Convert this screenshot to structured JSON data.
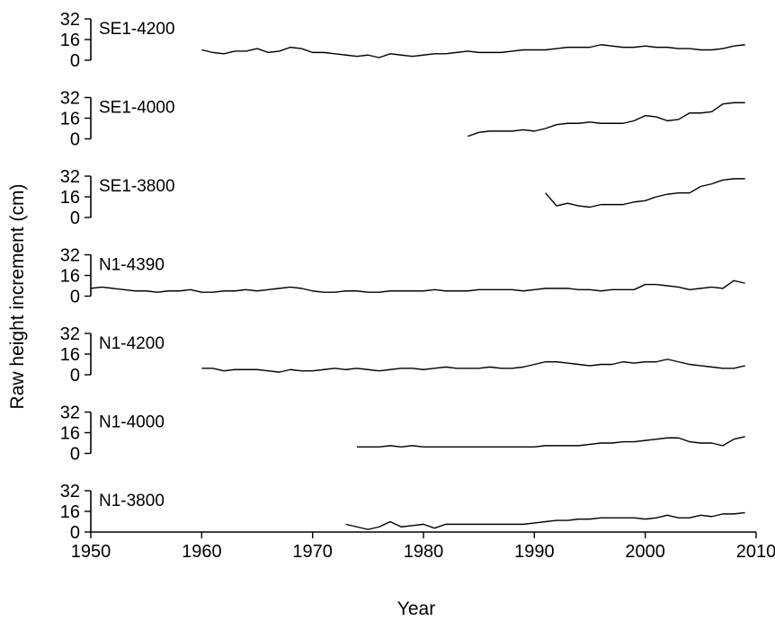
{
  "chart_data": {
    "type": "line",
    "xlabel": "Year",
    "ylabel": "Raw height increment (cm)",
    "xlim": [
      1950,
      2010
    ],
    "xticks": [
      "1950",
      "1960",
      "1970",
      "1980",
      "1990",
      "2000",
      "2010"
    ],
    "ylim": [
      0,
      32
    ],
    "yticks": [
      "0",
      "16",
      "32"
    ],
    "grid": false,
    "series": [
      {
        "name": "SE1-4200",
        "x": [
          1960,
          1961,
          1962,
          1963,
          1964,
          1965,
          1966,
          1967,
          1968,
          1969,
          1970,
          1971,
          1972,
          1973,
          1974,
          1975,
          1976,
          1977,
          1978,
          1979,
          1980,
          1981,
          1982,
          1983,
          1984,
          1985,
          1986,
          1987,
          1988,
          1989,
          1990,
          1991,
          1992,
          1993,
          1994,
          1995,
          1996,
          1997,
          1998,
          1999,
          2000,
          2001,
          2002,
          2003,
          2004,
          2005,
          2006,
          2007,
          2008,
          2009
        ],
        "y": [
          8,
          6,
          5,
          7,
          7,
          9,
          6,
          7,
          10,
          9,
          6,
          6,
          5,
          4,
          3,
          4,
          2,
          5,
          4,
          3,
          4,
          5,
          5,
          6,
          7,
          6,
          6,
          6,
          7,
          8,
          8,
          8,
          9,
          10,
          10,
          10,
          12,
          11,
          10,
          10,
          11,
          10,
          10,
          9,
          9,
          8,
          8,
          9,
          11,
          12
        ]
      },
      {
        "name": "SE1-4000",
        "x": [
          1984,
          1985,
          1986,
          1987,
          1988,
          1989,
          1990,
          1991,
          1992,
          1993,
          1994,
          1995,
          1996,
          1997,
          1998,
          1999,
          2000,
          2001,
          2002,
          2003,
          2004,
          2005,
          2006,
          2007,
          2008,
          2009
        ],
        "y": [
          2,
          5,
          6,
          6,
          6,
          7,
          6,
          8,
          11,
          12,
          12,
          13,
          12,
          12,
          12,
          14,
          18,
          17,
          14,
          15,
          20,
          20,
          21,
          27,
          28,
          28
        ]
      },
      {
        "name": "SE1-3800",
        "x": [
          1991,
          1992,
          1993,
          1994,
          1995,
          1996,
          1997,
          1998,
          1999,
          2000,
          2001,
          2002,
          2003,
          2004,
          2005,
          2006,
          2007,
          2008,
          2009
        ],
        "y": [
          19,
          9,
          11,
          9,
          8,
          10,
          10,
          10,
          12,
          13,
          16,
          18,
          19,
          19,
          24,
          26,
          29,
          30,
          30
        ]
      },
      {
        "name": "N1-4390",
        "x": [
          1950,
          1951,
          1952,
          1953,
          1954,
          1955,
          1956,
          1957,
          1958,
          1959,
          1960,
          1961,
          1962,
          1963,
          1964,
          1965,
          1966,
          1967,
          1968,
          1969,
          1970,
          1971,
          1972,
          1973,
          1974,
          1975,
          1976,
          1977,
          1978,
          1979,
          1980,
          1981,
          1982,
          1983,
          1984,
          1985,
          1986,
          1987,
          1988,
          1989,
          1990,
          1991,
          1992,
          1993,
          1994,
          1995,
          1996,
          1997,
          1998,
          1999,
          2000,
          2001,
          2002,
          2003,
          2004,
          2005,
          2006,
          2007,
          2008,
          2009
        ],
        "y": [
          6,
          7,
          6,
          5,
          4,
          4,
          3,
          4,
          4,
          5,
          3,
          3,
          4,
          4,
          5,
          4,
          5,
          6,
          7,
          6,
          4,
          3,
          3,
          4,
          4,
          3,
          3,
          4,
          4,
          4,
          4,
          5,
          4,
          4,
          4,
          5,
          5,
          5,
          5,
          4,
          5,
          6,
          6,
          6,
          5,
          5,
          4,
          5,
          5,
          5,
          9,
          9,
          8,
          7,
          5,
          6,
          7,
          6,
          12,
          10
        ]
      },
      {
        "name": "N1-4200",
        "x": [
          1960,
          1961,
          1962,
          1963,
          1964,
          1965,
          1966,
          1967,
          1968,
          1969,
          1970,
          1971,
          1972,
          1973,
          1974,
          1975,
          1976,
          1977,
          1978,
          1979,
          1980,
          1981,
          1982,
          1983,
          1984,
          1985,
          1986,
          1987,
          1988,
          1989,
          1990,
          1991,
          1992,
          1993,
          1994,
          1995,
          1996,
          1997,
          1998,
          1999,
          2000,
          2001,
          2002,
          2003,
          2004,
          2005,
          2006,
          2007,
          2008,
          2009
        ],
        "y": [
          5,
          5,
          3,
          4,
          4,
          4,
          3,
          2,
          4,
          3,
          3,
          4,
          5,
          4,
          5,
          4,
          3,
          4,
          5,
          5,
          4,
          5,
          6,
          5,
          5,
          5,
          6,
          5,
          5,
          6,
          8,
          10,
          10,
          9,
          8,
          7,
          8,
          8,
          10,
          9,
          10,
          10,
          12,
          10,
          8,
          7,
          6,
          5,
          5,
          7
        ]
      },
      {
        "name": "N1-4000",
        "x": [
          1974,
          1975,
          1976,
          1977,
          1978,
          1979,
          1980,
          1981,
          1982,
          1983,
          1984,
          1985,
          1986,
          1987,
          1988,
          1989,
          1990,
          1991,
          1992,
          1993,
          1994,
          1995,
          1996,
          1997,
          1998,
          1999,
          2000,
          2001,
          2002,
          2003,
          2004,
          2005,
          2006,
          2007,
          2008,
          2009
        ],
        "y": [
          5,
          5,
          5,
          6,
          5,
          6,
          5,
          5,
          5,
          5,
          5,
          5,
          5,
          5,
          5,
          5,
          5,
          6,
          6,
          6,
          6,
          7,
          8,
          8,
          9,
          9,
          10,
          11,
          12,
          12,
          9,
          8,
          8,
          6,
          11,
          13
        ]
      },
      {
        "name": "N1-3800",
        "x": [
          1973,
          1974,
          1975,
          1976,
          1977,
          1978,
          1979,
          1980,
          1981,
          1982,
          1983,
          1984,
          1985,
          1986,
          1987,
          1988,
          1989,
          1990,
          1991,
          1992,
          1993,
          1994,
          1995,
          1996,
          1997,
          1998,
          1999,
          2000,
          2001,
          2002,
          2003,
          2004,
          2005,
          2006,
          2007,
          2008,
          2009
        ],
        "y": [
          6,
          4,
          2,
          4,
          8,
          4,
          5,
          6,
          3,
          6,
          6,
          6,
          6,
          6,
          6,
          6,
          6,
          7,
          8,
          9,
          9,
          10,
          10,
          11,
          11,
          11,
          11,
          10,
          11,
          13,
          11,
          11,
          13,
          12,
          14,
          14,
          15
        ]
      }
    ]
  }
}
